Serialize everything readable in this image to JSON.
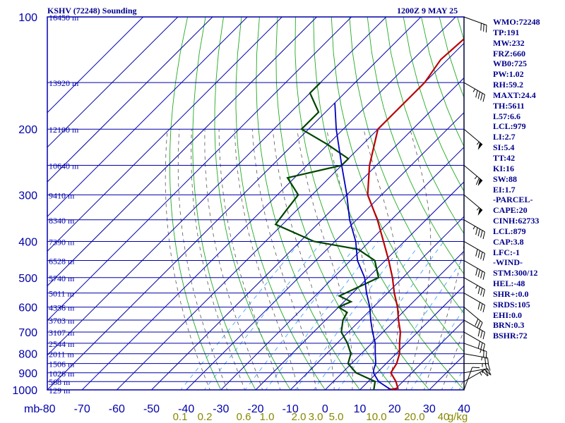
{
  "header": {
    "station": "KSHV (72248) Sounding",
    "time": "1200Z  9 MAY 25"
  },
  "indices": [
    "WMO:72248",
    "TP:191",
    "MW:232",
    "FRZ:660",
    "WB0:725",
    "PW:1.02",
    "RH:59.2",
    "MAXT:24.4",
    "TH:5611",
    "L57:6.6",
    "LCL:979",
    "LI:2.7",
    "SI:5.4",
    "TT:42",
    "KI:16",
    "SW:88",
    "EI:1.7",
    "-PARCEL-",
    "CAPE:20",
    "CINH:62733",
    "LCL:879",
    "CAP:3.8",
    "LFC:-1",
    "-WIND-",
    "STM:300/12",
    "HEL:-48",
    "SHR+:0.0",
    "SRDS:105",
    "EHI:0.0",
    "BRN:0.3",
    "BSHR:72"
  ],
  "colors": {
    "frame": "#0000aa",
    "isotherm": "#0000aa",
    "dry_adiabat": "#22aa22",
    "moist_adiabat": "#555555",
    "mixing_ratio": "#3399ff",
    "temperature": "#bb0000",
    "dewpoint": "#004400",
    "parcel": "#0000bb",
    "text": "#00008b",
    "mixing_label": "#888800",
    "wind_barb": "#000000"
  },
  "chart_data": {
    "type": "line",
    "title": "KSHV (72248) Sounding",
    "xlabel": "",
    "ylabel": "mb",
    "x_scale": "temperature (°C), skewed",
    "y_scale": "log pressure",
    "xlim": [
      -80,
      40
    ],
    "ylim": [
      1000,
      100
    ],
    "pressure_ticks": [
      100,
      200,
      300,
      400,
      500,
      600,
      700,
      800,
      900,
      1000
    ],
    "pressure_tick_labels": [
      "100",
      "200",
      "300",
      "400",
      "500",
      "600",
      "700",
      "800",
      "900",
      "1000"
    ],
    "y_axis_unit": "mb",
    "temp_ticks": [
      -80,
      -70,
      -60,
      -50,
      -40,
      -30,
      -20,
      -10,
      0,
      10,
      20,
      30,
      40
    ],
    "temp_tick_labels": [
      "-80",
      "-70",
      "-60",
      "-50",
      "-40",
      "-30",
      "-20",
      "-10",
      "0",
      "10",
      "20",
      "30",
      "40"
    ],
    "height_labels": [
      {
        "p": 100,
        "label": "16450 m"
      },
      {
        "p": 150,
        "label": "13920 m"
      },
      {
        "p": 200,
        "label": "12100 m"
      },
      {
        "p": 250,
        "label": "10640 m"
      },
      {
        "p": 300,
        "label": "9410 m"
      },
      {
        "p": 350,
        "label": "8340 m"
      },
      {
        "p": 400,
        "label": "7390 m"
      },
      {
        "p": 450,
        "label": "6528 m"
      },
      {
        "p": 500,
        "label": "5740 m"
      },
      {
        "p": 550,
        "label": "5011 m"
      },
      {
        "p": 600,
        "label": "4336 m"
      },
      {
        "p": 650,
        "label": "3703 m"
      },
      {
        "p": 700,
        "label": "3107 m"
      },
      {
        "p": 750,
        "label": "2544 m"
      },
      {
        "p": 800,
        "label": "2011 m"
      },
      {
        "p": 850,
        "label": "1506 m"
      },
      {
        "p": 900,
        "label": "1026 m"
      },
      {
        "p": 950,
        "label": "568 m"
      },
      {
        "p": 1000,
        "label": "129 m"
      }
    ],
    "mixing_ratio_labels": [
      "0.1",
      "0.2",
      "0.6",
      "1.0",
      "2.0",
      "3.0",
      "5.0",
      "10.0",
      "20.0",
      "40",
      "g/kg"
    ],
    "mixing_ratio_ticks": [
      0.1,
      0.2,
      0.6,
      1.0,
      2.0,
      3.0,
      5.0,
      10.0,
      20.0,
      40
    ],
    "series": [
      {
        "key": "temperature",
        "points": [
          [
            1000,
            18.0
          ],
          [
            990,
            20.5
          ],
          [
            950,
            18.0
          ],
          [
            900,
            14.0
          ],
          [
            850,
            13.0
          ],
          [
            800,
            11.0
          ],
          [
            750,
            8.0
          ],
          [
            700,
            5.0
          ],
          [
            650,
            1.0
          ],
          [
            600,
            -3.0
          ],
          [
            550,
            -8.0
          ],
          [
            500,
            -13.0
          ],
          [
            450,
            -19.0
          ],
          [
            400,
            -26.0
          ],
          [
            350,
            -34.0
          ],
          [
            300,
            -44.0
          ],
          [
            250,
            -52.0
          ],
          [
            200,
            -60.0
          ],
          [
            180,
            -60.0
          ],
          [
            150,
            -60.0
          ],
          [
            130,
            -62.0
          ],
          [
            110,
            -61.0
          ],
          [
            100,
            -61.0
          ]
        ]
      },
      {
        "key": "dewpoint",
        "points": [
          [
            1000,
            14.0
          ],
          [
            950,
            12.0
          ],
          [
            900,
            4.0
          ],
          [
            850,
            -1.0
          ],
          [
            800,
            -3.0
          ],
          [
            750,
            -7.0
          ],
          [
            700,
            -12.0
          ],
          [
            650,
            -15.0
          ],
          [
            620,
            -16.0
          ],
          [
            600,
            -20.0
          ],
          [
            580,
            -18.0
          ],
          [
            560,
            -23.0
          ],
          [
            500,
            -17.0
          ],
          [
            450,
            -23.0
          ],
          [
            420,
            -31.0
          ],
          [
            400,
            -46.0
          ],
          [
            360,
            -62.0
          ],
          [
            330,
            -63.0
          ],
          [
            300,
            -64.0
          ],
          [
            270,
            -72.0
          ],
          [
            250,
            -60.0
          ],
          [
            240,
            -60.0
          ],
          [
            220,
            -70.0
          ],
          [
            200,
            -82.0
          ],
          [
            180,
            -82.0
          ],
          [
            160,
            -90.0
          ],
          [
            150,
            -90.0
          ]
        ]
      },
      {
        "key": "parcel",
        "points": [
          [
            1000,
            19.0
          ],
          [
            950,
            13.0
          ],
          [
            900,
            9.0
          ],
          [
            879,
            8.0
          ],
          [
            850,
            7.0
          ],
          [
            800,
            4.0
          ],
          [
            750,
            1.0
          ],
          [
            700,
            -3.0
          ],
          [
            650,
            -7.0
          ],
          [
            600,
            -11.0
          ],
          [
            550,
            -16.0
          ],
          [
            500,
            -21.0
          ],
          [
            450,
            -28.0
          ],
          [
            400,
            -34.0
          ],
          [
            350,
            -42.0
          ],
          [
            300,
            -50.0
          ],
          [
            250,
            -60.0
          ],
          [
            200,
            -72.0
          ],
          [
            170,
            -80.0
          ]
        ]
      }
    ],
    "wind_barbs": [
      {
        "p": 1000,
        "dir": 200,
        "spd": 10
      },
      {
        "p": 950,
        "dir": 240,
        "spd": 25
      },
      {
        "p": 900,
        "dir": 260,
        "spd": 25
      },
      {
        "p": 850,
        "dir": 270,
        "spd": 25
      },
      {
        "p": 800,
        "dir": 280,
        "spd": 25
      },
      {
        "p": 750,
        "dir": 290,
        "spd": 25
      },
      {
        "p": 700,
        "dir": 300,
        "spd": 30
      },
      {
        "p": 650,
        "dir": 300,
        "spd": 30
      },
      {
        "p": 600,
        "dir": 310,
        "spd": 30
      },
      {
        "p": 550,
        "dir": 300,
        "spd": 30
      },
      {
        "p": 500,
        "dir": 300,
        "spd": 35
      },
      {
        "p": 450,
        "dir": 300,
        "spd": 40
      },
      {
        "p": 400,
        "dir": 300,
        "spd": 40
      },
      {
        "p": 350,
        "dir": 300,
        "spd": 45
      },
      {
        "p": 300,
        "dir": 310,
        "spd": 55
      },
      {
        "p": 250,
        "dir": 310,
        "spd": 65
      },
      {
        "p": 200,
        "dir": 310,
        "spd": 55
      },
      {
        "p": 150,
        "dir": 300,
        "spd": 45
      },
      {
        "p": 100,
        "dir": 290,
        "spd": 30
      }
    ]
  }
}
